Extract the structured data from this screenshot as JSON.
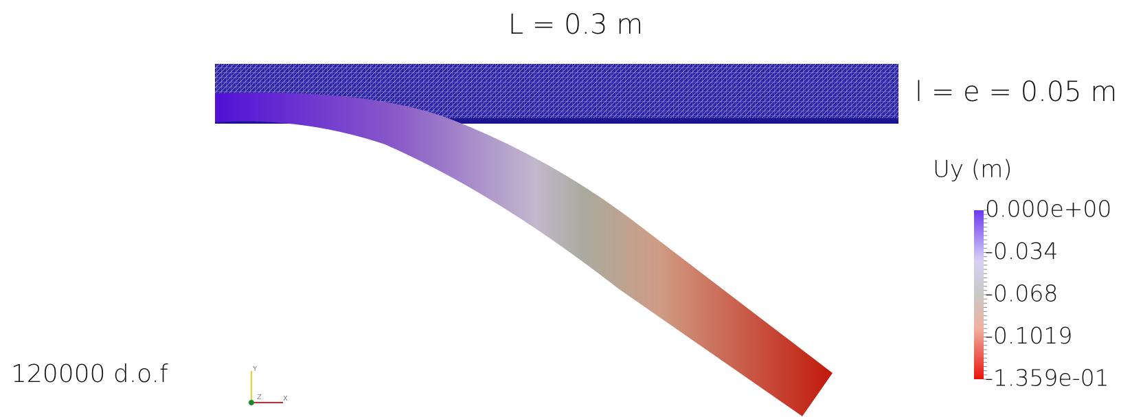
{
  "annotations": {
    "length": "L = 0.3 m",
    "section": "l = e = 0.05 m",
    "dof": "120000 d.o.f"
  },
  "colorbar": {
    "title": "Uy (m)",
    "labels": [
      "0.000e+00",
      "-0.034",
      "-0.068",
      "-0.1019",
      "-1.359e-01"
    ]
  },
  "triad": {
    "y": "Y",
    "z": "Z",
    "x": "X"
  }
}
